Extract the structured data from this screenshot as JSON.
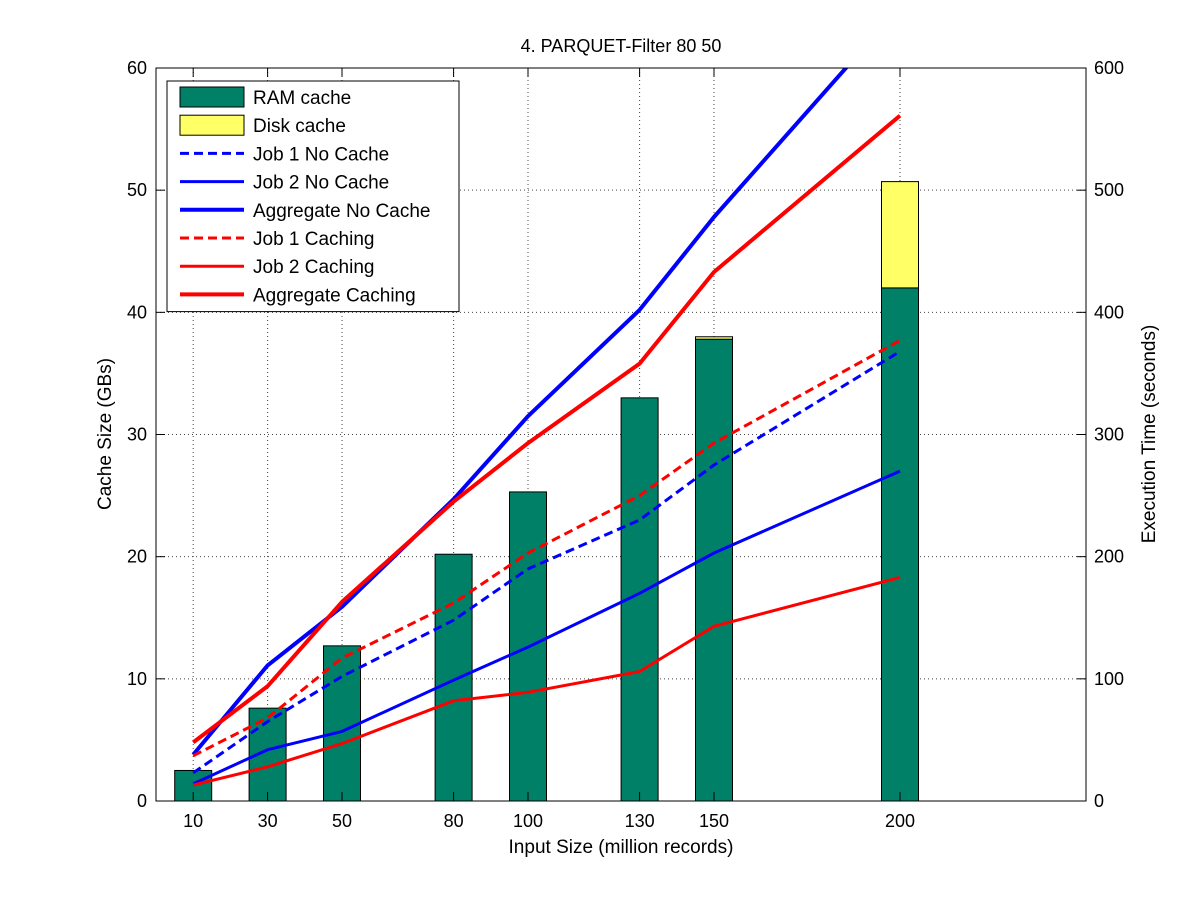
{
  "chart_data": {
    "type": "bar",
    "title": "4. PARQUET-Filter 80 50",
    "xlabel": "Input Size (million records)",
    "ylabel_left": "Cache Size (GBs)",
    "ylabel_right": "Execution Time (seconds)",
    "grid": true,
    "legend_position": "top-left",
    "xlim": [
      0,
      250
    ],
    "ylim_left": [
      0,
      60
    ],
    "ylim_right": [
      0,
      600
    ],
    "x_ticks": [
      10,
      30,
      50,
      80,
      100,
      130,
      150,
      200
    ],
    "y_ticks_left": [
      0,
      10,
      20,
      30,
      40,
      50,
      60
    ],
    "y_ticks_right": [
      0,
      100,
      200,
      300,
      400,
      500,
      600
    ],
    "categories": [
      10,
      30,
      50,
      80,
      100,
      130,
      150,
      200
    ],
    "bar_series": [
      {
        "name": "RAM cache",
        "color": "#008066",
        "values": [
          2.5,
          7.6,
          12.7,
          20.2,
          25.3,
          33.0,
          37.8,
          42.0
        ]
      },
      {
        "name": "Disk cache",
        "color": "#FFFF66",
        "values": [
          0,
          0,
          0,
          0,
          0,
          0,
          0.2,
          8.7
        ]
      }
    ],
    "line_series": [
      {
        "name": "Job 1 No Cache",
        "color": "#0000FF",
        "style": "dashed",
        "weight": "thin",
        "values": [
          23,
          65,
          102,
          148,
          190,
          230,
          275,
          368
        ]
      },
      {
        "name": "Job 2 No Cache",
        "color": "#0000FF",
        "style": "solid",
        "weight": "thin",
        "values": [
          14,
          42,
          57,
          99,
          126,
          170,
          203,
          270
        ]
      },
      {
        "name": "Aggregate No Cache",
        "color": "#0000FF",
        "style": "solid",
        "weight": "thick",
        "values": [
          38,
          111,
          159,
          247,
          315,
          402,
          478,
          650
        ]
      },
      {
        "name": "Job 1 Caching",
        "color": "#FF0000",
        "style": "dashed",
        "weight": "thin",
        "values": [
          37,
          68,
          117,
          162,
          203,
          250,
          293,
          377
        ]
      },
      {
        "name": "Job 2 Caching",
        "color": "#FF0000",
        "style": "solid",
        "weight": "thin",
        "values": [
          13,
          28,
          47,
          82,
          89,
          106,
          143,
          183
        ]
      },
      {
        "name": "Aggregate Caching",
        "color": "#FF0000",
        "style": "solid",
        "weight": "thick",
        "values": [
          48,
          94,
          163,
          245,
          293,
          358,
          433,
          561
        ]
      }
    ]
  }
}
